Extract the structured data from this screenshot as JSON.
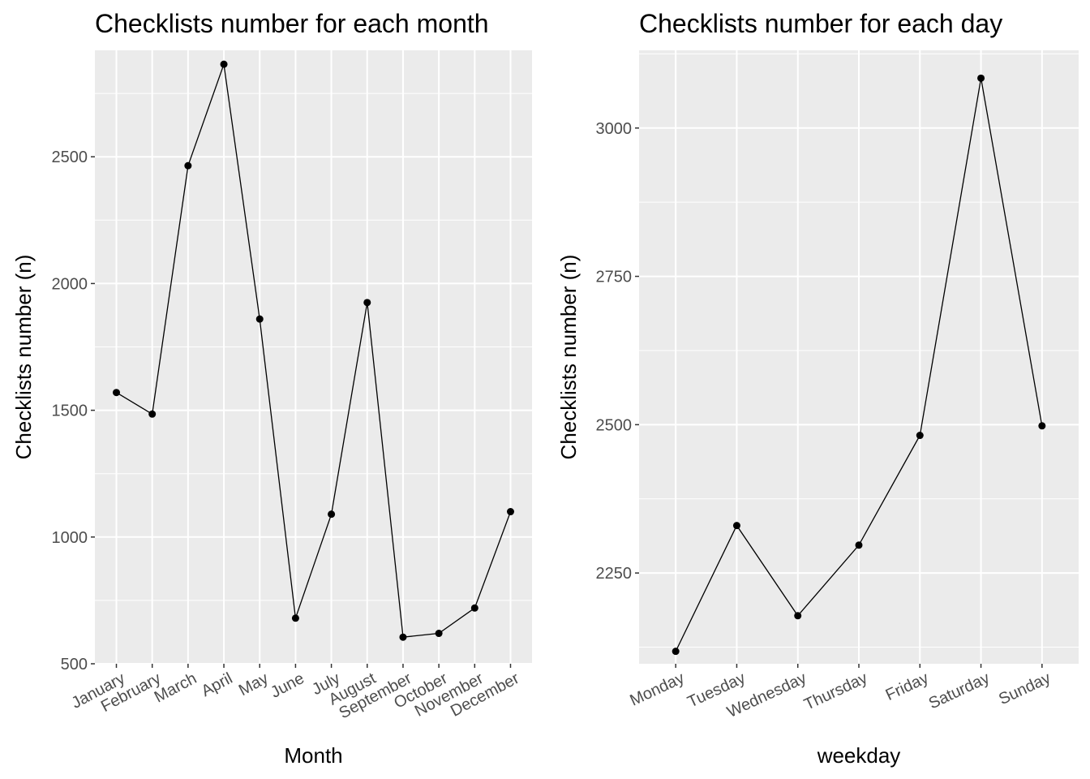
{
  "chart_data": [
    {
      "type": "line",
      "title": "Checklists number for each month",
      "xlabel": "Month",
      "ylabel": "Checklists number (n)",
      "categories": [
        "January",
        "February",
        "March",
        "April",
        "May",
        "June",
        "July",
        "August",
        "September",
        "October",
        "November",
        "December"
      ],
      "values": [
        1570,
        1485,
        2465,
        2865,
        1860,
        680,
        1090,
        1925,
        605,
        620,
        720,
        1100
      ],
      "ylim": [
        500,
        2920
      ],
      "yticks": [
        500,
        1000,
        1500,
        2000,
        2500
      ],
      "grid": true,
      "legend": "none"
    },
    {
      "type": "line",
      "title": "Checklists number for each day",
      "xlabel": "weekday",
      "ylabel": "Checklists number (n)",
      "categories": [
        "Monday",
        "Tuesday",
        "Wednesday",
        "Thursday",
        "Friday",
        "Saturday",
        "Sunday"
      ],
      "values": [
        2118,
        2330,
        2178,
        2297,
        2482,
        3084,
        2498
      ],
      "ylim": [
        2097,
        3131
      ],
      "yticks": [
        2250,
        2500,
        2750,
        3000
      ],
      "grid": true,
      "legend": "none"
    }
  ]
}
